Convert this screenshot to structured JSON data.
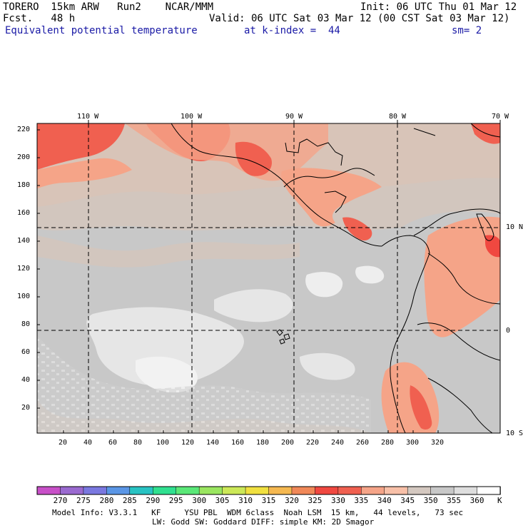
{
  "header": {
    "model": "TORERO  15km ARW   Run2    NCAR/MMM",
    "init": "Init: 06 UTC Thu 01 Mar 12",
    "fcst": "Fcst.   48 h",
    "valid": "Valid: 06 UTC Sat 03 Mar 12 (00 CST Sat 03 Mar 12)",
    "field": "Equivalent potential temperature",
    "kindex": "at k-index =  44",
    "sm": "sm= 2"
  },
  "map": {
    "lon_labels": [
      "110 W",
      "100 W",
      "90 W",
      "80 W",
      "70 W"
    ],
    "lat_labels": [
      "10 N",
      "0",
      "10 S"
    ],
    "y_ticks": [
      "20",
      "40",
      "60",
      "80",
      "100",
      "120",
      "140",
      "160",
      "180",
      "200",
      "220"
    ],
    "x_ticks": [
      "20",
      "40",
      "60",
      "80",
      "100",
      "120",
      "140",
      "160",
      "180",
      "200",
      "220",
      "240",
      "260",
      "280",
      "300",
      "320"
    ]
  },
  "colorbar": {
    "labels": [
      "270",
      "275",
      "280",
      "285",
      "290",
      "295",
      "300",
      "305",
      "310",
      "315",
      "320",
      "325",
      "330",
      "335",
      "340",
      "345",
      "350",
      "355",
      "360"
    ],
    "unit": "K",
    "colors": [
      "#c850c8",
      "#9a6ad0",
      "#7a78e0",
      "#5a96e6",
      "#28c3c3",
      "#30e090",
      "#5ae878",
      "#9ae660",
      "#cce858",
      "#f0e040",
      "#f5b850",
      "#f08858",
      "#f04840",
      "#f06050",
      "#f5a488",
      "#f8c0a8",
      "#d4c8c0",
      "#c8c8c8",
      "#dedede",
      "#ffffff"
    ]
  },
  "footer": {
    "line1": "Model Info: V3.3.1   KF     YSU PBL  WDM 6class  Noah LSM  15 km,   44 levels,   73 sec",
    "line2": "LW: Godd SW: Goddard DIFF: simple KM: 2D Smagor"
  }
}
